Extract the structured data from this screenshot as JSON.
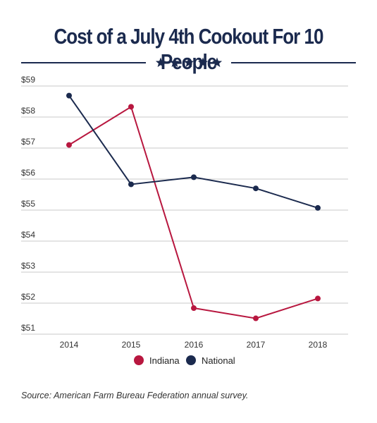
{
  "title": "Cost of a July 4th Cookout For 10 People",
  "source": "Source: American Farm Bureau Federation annual survey.",
  "stars_icon": "five-stars",
  "colors": {
    "navy": "#1b2a4e",
    "red": "#b8173f",
    "grid": "#c8c8c8"
  },
  "chart_data": {
    "type": "line",
    "categories": [
      "2014",
      "2015",
      "2016",
      "2017",
      "2018"
    ],
    "series": [
      {
        "name": "Indiana",
        "color": "#b8173f",
        "values": [
          57.1,
          58.33,
          51.84,
          51.51,
          52.15
        ]
      },
      {
        "name": "National",
        "color": "#1b2a4e",
        "values": [
          58.69,
          55.83,
          56.06,
          55.7,
          55.07
        ]
      }
    ],
    "ytick_labels": [
      "$59",
      "$58",
      "$57",
      "$56",
      "$55",
      "$54",
      "$53",
      "$52",
      "$51"
    ],
    "ytick_values": [
      59,
      58,
      57,
      56,
      55,
      54,
      53,
      52,
      51
    ],
    "ylim": [
      51,
      59
    ],
    "grid": true,
    "legend_position": "bottom-center"
  }
}
